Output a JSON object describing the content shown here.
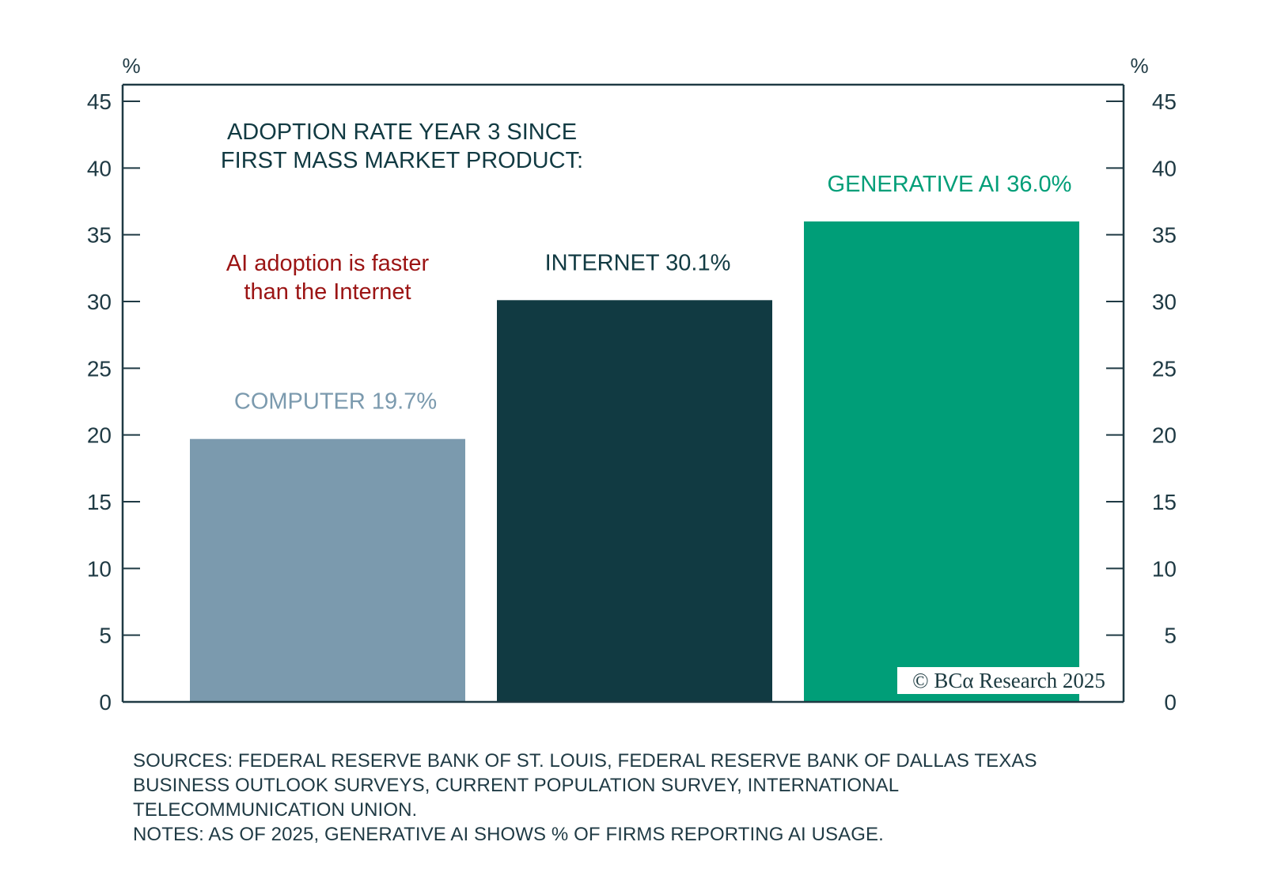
{
  "chart_data": {
    "type": "bar",
    "title_lines": [
      "ADOPTION RATE YEAR 3 SINCE",
      "FIRST MASS MARKET PRODUCT:"
    ],
    "annotation_lines": [
      "AI adoption is faster",
      "than the Internet"
    ],
    "categories": [
      "COMPUTER",
      "INTERNET",
      "GENERATIVE AI"
    ],
    "values": [
      19.7,
      30.1,
      36.0
    ],
    "bar_labels": [
      "COMPUTER 19.7%",
      "INTERNET 30.1%",
      "GENERATIVE AI 36.0%"
    ],
    "colors": [
      "#7b9aae",
      "#113a42",
      "#009e78"
    ],
    "label_colors": [
      "#7b9aae",
      "#113a42",
      "#009e78"
    ],
    "ylim": [
      0,
      45
    ],
    "yticks": [
      0,
      5,
      10,
      15,
      20,
      25,
      30,
      35,
      40,
      45
    ],
    "left_unit": "%",
    "right_unit": "%",
    "axis_color": "#1f3a44",
    "annotation_color": "#9b1414",
    "grid": false
  },
  "watermark": "© BCα Research 2025",
  "notes": {
    "lines": [
      "SOURCES:  FEDERAL RESERVE BANK OF ST. LOUIS, FEDERAL RESERVE BANK OF DALLAS TEXAS",
      "BUSINESS OUTLOOK SURVEYS, CURRENT POPULATION SURVEY, INTERNATIONAL",
      "TELECOMMUNICATION UNION.",
      "NOTES: AS OF 2025, GENERATIVE AI SHOWS % OF FIRMS REPORTING AI USAGE."
    ]
  }
}
